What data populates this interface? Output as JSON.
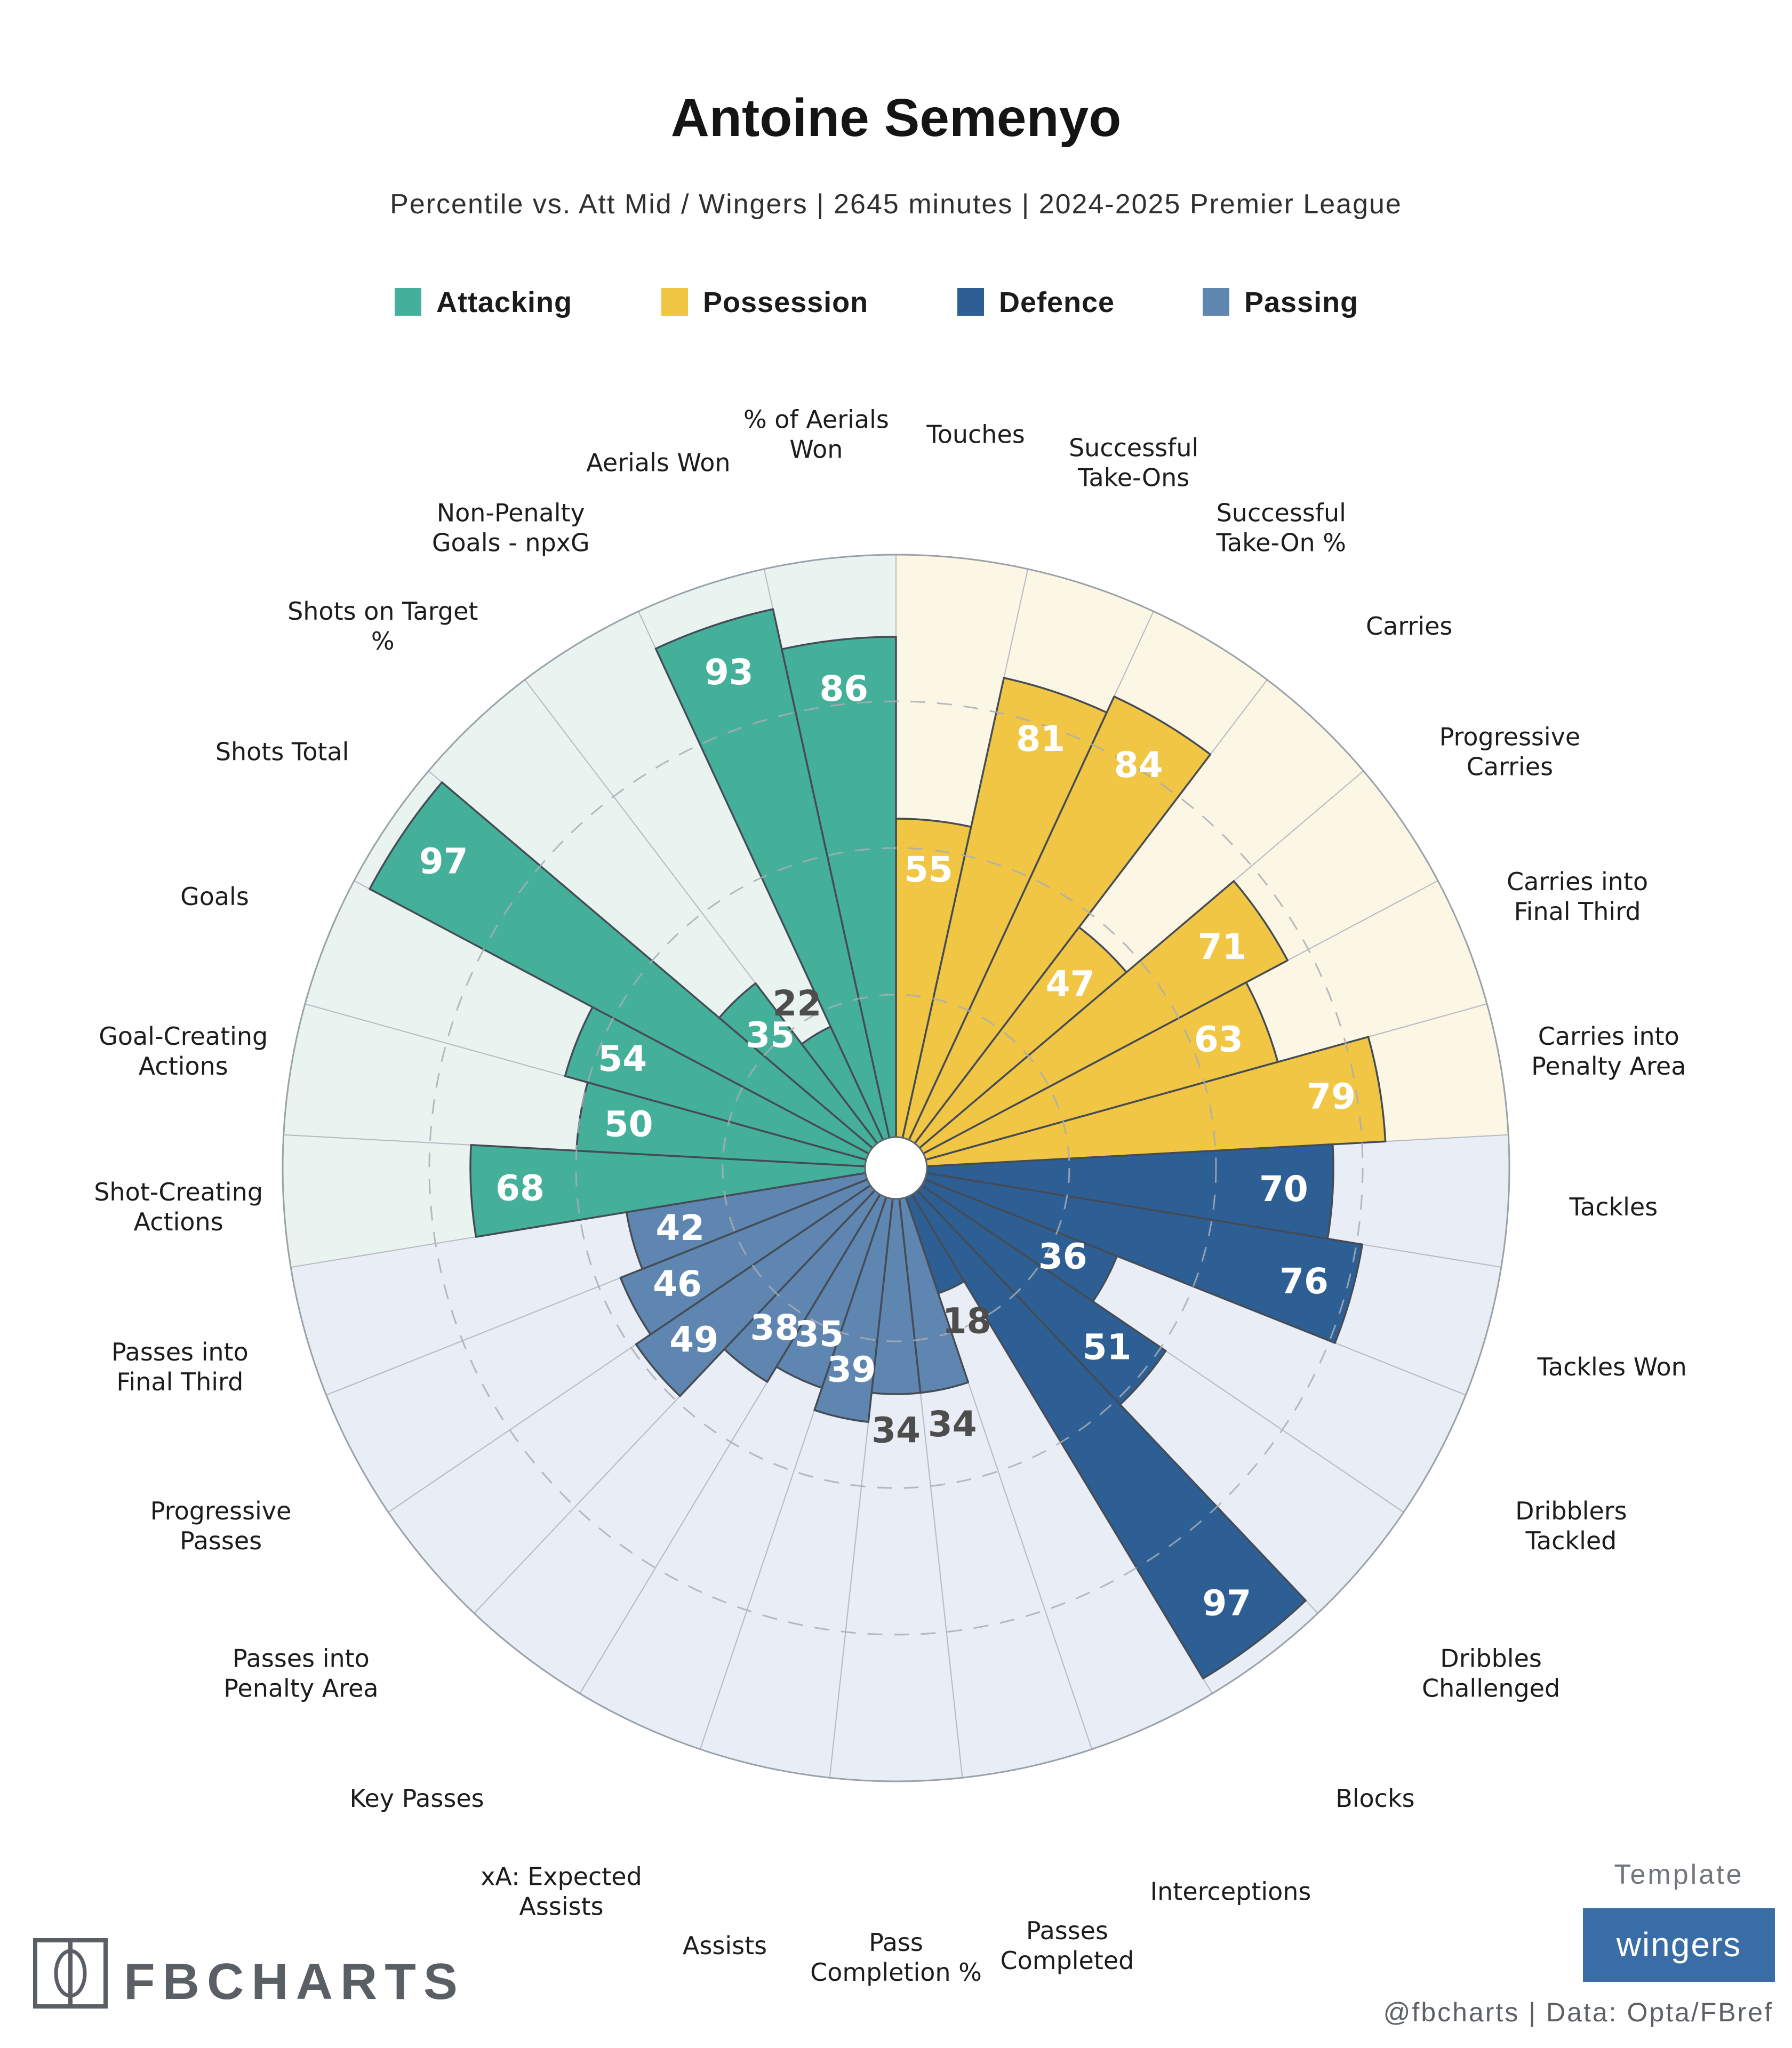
{
  "header": {
    "title": "Antoine Semenyo",
    "subtitle": "Percentile vs. Att Mid / Wingers | 2645 minutes | 2024-2025 Premier League"
  },
  "legend": [
    {
      "label": "Attacking",
      "color": "#44b09a"
    },
    {
      "label": "Possession",
      "color": "#f0c644"
    },
    {
      "label": "Defence",
      "color": "#2d5f95"
    },
    {
      "label": "Passing",
      "color": "#5e86b1"
    }
  ],
  "footer": {
    "credit": "@fbcharts | Data: Opta/FBref",
    "template_label": "Template",
    "template_value": "wingers",
    "template_color": "#3a6da6",
    "brand": "FBCHARTS"
  },
  "chart_data": {
    "type": "bar",
    "subtype": "polar-pizza-percentile",
    "title": "Antoine Semenyo",
    "ylim": [
      0,
      100
    ],
    "rings": [
      25,
      50,
      75,
      100
    ],
    "grid": "dashed",
    "start": "12 o'clock",
    "direction": "clockwise",
    "sections": [
      {
        "name": "Possession",
        "color": "#f0c644",
        "bg": "#fcf7e5",
        "stats": [
          {
            "label": "Touches",
            "lines": [
              "Touches"
            ],
            "value": 55
          },
          {
            "label": "Successful Take-Ons",
            "lines": [
              "Successful",
              "Take-Ons"
            ],
            "value": 81
          },
          {
            "label": "Successful Take-On %",
            "lines": [
              "Successful",
              "Take-On %"
            ],
            "value": 84
          },
          {
            "label": "Carries",
            "lines": [
              "Carries"
            ],
            "value": 47
          },
          {
            "label": "Progressive Carries",
            "lines": [
              "Progressive",
              "Carries"
            ],
            "value": 71
          },
          {
            "label": "Carries into Final Third",
            "lines": [
              "Carries into",
              "Final Third"
            ],
            "value": 63
          },
          {
            "label": "Carries into Penalty Area",
            "lines": [
              "Carries into",
              "Penalty Area"
            ],
            "value": 79
          }
        ]
      },
      {
        "name": "Defence",
        "color": "#2d5f95",
        "bg": "#e9edf5",
        "stats": [
          {
            "label": "Tackles",
            "lines": [
              "Tackles"
            ],
            "value": 70
          },
          {
            "label": "Tackles Won",
            "lines": [
              "Tackles Won"
            ],
            "value": 76
          },
          {
            "label": "Dribblers Tackled",
            "lines": [
              "Dribblers",
              "Tackled"
            ],
            "value": 36
          },
          {
            "label": "Dribbles Challenged",
            "lines": [
              "Dribbles",
              "Challenged"
            ],
            "value": 51
          },
          {
            "label": "Blocks",
            "lines": [
              "Blocks"
            ],
            "value": 97
          },
          {
            "label": "Interceptions",
            "lines": [
              "Interceptions"
            ],
            "value": 18
          }
        ]
      },
      {
        "name": "Passing",
        "color": "#5e86b1",
        "bg": "#e9edf5",
        "stats": [
          {
            "label": "Passes Completed",
            "lines": [
              "Passes",
              "Completed"
            ],
            "value": 34
          },
          {
            "label": "Pass Completion %",
            "lines": [
              "Pass",
              "Completion %"
            ],
            "value": 34
          },
          {
            "label": "Assists",
            "lines": [
              "Assists"
            ],
            "value": 39
          },
          {
            "label": "xA: Expected Assists",
            "lines": [
              "xA: Expected",
              "Assists"
            ],
            "value": 35
          },
          {
            "label": "Key Passes",
            "lines": [
              "Key Passes"
            ],
            "value": 38
          },
          {
            "label": "Passes into Penalty Area",
            "lines": [
              "Passes into",
              "Penalty Area"
            ],
            "value": 49
          },
          {
            "label": "Progressive Passes",
            "lines": [
              "Progressive",
              "Passes"
            ],
            "value": 46
          },
          {
            "label": "Passes into Final Third",
            "lines": [
              "Passes into",
              "Final Third"
            ],
            "value": 42
          }
        ]
      },
      {
        "name": "Attacking",
        "color": "#44b09a",
        "bg": "#e9f4f0",
        "stats": [
          {
            "label": "Shot-Creating Actions",
            "lines": [
              "Shot-Creating",
              "Actions"
            ],
            "value": 68
          },
          {
            "label": "Goal-Creating Actions",
            "lines": [
              "Goal-Creating",
              "Actions"
            ],
            "value": 50
          },
          {
            "label": "Goals",
            "lines": [
              "Goals"
            ],
            "value": 54
          },
          {
            "label": "Shots Total",
            "lines": [
              "Shots Total"
            ],
            "value": 97
          },
          {
            "label": "Shots on Target %",
            "lines": [
              "Shots on Target",
              "%"
            ],
            "value": 35
          },
          {
            "label": "Non-Penalty Goals - npxG",
            "lines": [
              "Non-Penalty",
              "Goals - npxG"
            ],
            "value": 22
          },
          {
            "label": "Aerials Won",
            "lines": [
              "Aerials Won"
            ],
            "value": 93
          },
          {
            "label": "% of Aerials Won",
            "lines": [
              "% of Aerials",
              "Won"
            ],
            "value": 86
          }
        ]
      }
    ]
  }
}
